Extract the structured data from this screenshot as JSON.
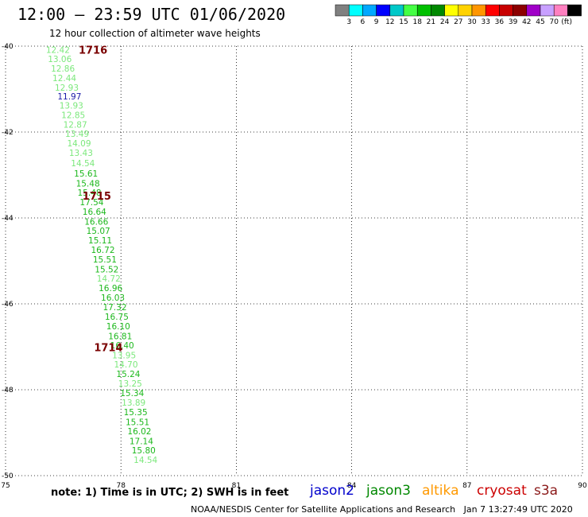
{
  "header": {
    "title": "12:00 – 23:59 UTC 01/06/2020",
    "subtitle": "12 hour collection of altimeter wave heights"
  },
  "colorbar": {
    "units": "(ft)",
    "swatches": [
      {
        "color": "#808080",
        "label": ""
      },
      {
        "color": "#00ffff",
        "label": "3"
      },
      {
        "color": "#00a8ff",
        "label": "6"
      },
      {
        "color": "#0000ff",
        "label": "9"
      },
      {
        "color": "#00c8c8",
        "label": "12"
      },
      {
        "color": "#44ff44",
        "label": "15"
      },
      {
        "color": "#00c000",
        "label": "18"
      },
      {
        "color": "#008800",
        "label": "21"
      },
      {
        "color": "#ffff00",
        "label": "24"
      },
      {
        "color": "#ffd200",
        "label": "27"
      },
      {
        "color": "#ff9600",
        "label": "30"
      },
      {
        "color": "#ff0000",
        "label": "33"
      },
      {
        "color": "#c80000",
        "label": "36"
      },
      {
        "color": "#8c0000",
        "label": "39"
      },
      {
        "color": "#a000c8",
        "label": "42"
      },
      {
        "color": "#c8a0ff",
        "label": "45"
      },
      {
        "color": "#ff80c0",
        "label": "70"
      },
      {
        "color": "#000000",
        "label": ""
      }
    ]
  },
  "map": {
    "lon_range": [
      75,
      90
    ],
    "lat_range": [
      -40,
      -50
    ],
    "lon_ticks": [
      "75",
      "78",
      "81",
      "84",
      "87",
      "90"
    ],
    "lat_ticks": [
      "-40",
      "-42",
      "-44",
      "-46",
      "-48",
      "-50"
    ],
    "pass_labels": [
      {
        "text": "1716",
        "lon": 76.9,
        "lat": -40.08
      },
      {
        "text": "1715",
        "lon": 77.0,
        "lat": -43.48
      },
      {
        "text": "1714",
        "lon": 77.3,
        "lat": -47.01
      }
    ],
    "observations": [
      {
        "v": "12.42",
        "color": "#7ce87c",
        "lon": 76.05,
        "lat": -40.08
      },
      {
        "v": "13.06",
        "color": "#7ce87c",
        "lon": 76.1,
        "lat": -40.3
      },
      {
        "v": "12.86",
        "color": "#7ce87c",
        "lon": 76.18,
        "lat": -40.52
      },
      {
        "v": "12.44",
        "color": "#7ce87c",
        "lon": 76.22,
        "lat": -40.74
      },
      {
        "v": "12.93",
        "color": "#7ce87c",
        "lon": 76.28,
        "lat": -40.96
      },
      {
        "v": "11.97",
        "color": "#1a1aa8",
        "lon": 76.35,
        "lat": -41.17
      },
      {
        "v": "13.93",
        "color": "#7ce87c",
        "lon": 76.4,
        "lat": -41.38
      },
      {
        "v": "12.85",
        "color": "#7ce87c",
        "lon": 76.45,
        "lat": -41.6
      },
      {
        "v": "12.87",
        "color": "#7ce87c",
        "lon": 76.5,
        "lat": -41.82
      },
      {
        "v": "13.49",
        "color": "#7ce87c",
        "lon": 76.55,
        "lat": -42.04
      },
      {
        "v": "14.09",
        "color": "#7ce87c",
        "lon": 76.6,
        "lat": -42.26
      },
      {
        "v": "13.43",
        "color": "#7ce87c",
        "lon": 76.65,
        "lat": -42.48
      },
      {
        "v": "14.54",
        "color": "#7ce87c",
        "lon": 76.7,
        "lat": -42.72
      },
      {
        "v": "15.61",
        "color": "#1db81d",
        "lon": 76.78,
        "lat": -42.96
      },
      {
        "v": "15.48",
        "color": "#1db81d",
        "lon": 76.83,
        "lat": -43.19
      },
      {
        "v": "15.48",
        "color": "#1db81d",
        "lon": 76.87,
        "lat": -43.41
      },
      {
        "v": "17.54",
        "color": "#1db81d",
        "lon": 76.93,
        "lat": -43.63
      },
      {
        "v": "16.64",
        "color": "#1db81d",
        "lon": 77.0,
        "lat": -43.85
      },
      {
        "v": "16.66",
        "color": "#1db81d",
        "lon": 77.05,
        "lat": -44.08
      },
      {
        "v": "15.07",
        "color": "#1db81d",
        "lon": 77.1,
        "lat": -44.3
      },
      {
        "v": "15.11",
        "color": "#1db81d",
        "lon": 77.15,
        "lat": -44.52
      },
      {
        "v": "16.72",
        "color": "#1db81d",
        "lon": 77.22,
        "lat": -44.74
      },
      {
        "v": "15.51",
        "color": "#1db81d",
        "lon": 77.27,
        "lat": -44.96
      },
      {
        "v": "15.52",
        "color": "#1db81d",
        "lon": 77.32,
        "lat": -45.19
      },
      {
        "v": "14.72",
        "color": "#7ce87c",
        "lon": 77.37,
        "lat": -45.41
      },
      {
        "v": "16.96",
        "color": "#1db81d",
        "lon": 77.42,
        "lat": -45.63
      },
      {
        "v": "16.03",
        "color": "#1db81d",
        "lon": 77.48,
        "lat": -45.85
      },
      {
        "v": "17.32",
        "color": "#1db81d",
        "lon": 77.53,
        "lat": -46.07
      },
      {
        "v": "16.75",
        "color": "#1db81d",
        "lon": 77.58,
        "lat": -46.3
      },
      {
        "v": "16.10",
        "color": "#1db81d",
        "lon": 77.62,
        "lat": -46.52
      },
      {
        "v": "16.81",
        "color": "#1db81d",
        "lon": 77.67,
        "lat": -46.75
      },
      {
        "v": "16.40",
        "color": "#1db81d",
        "lon": 77.72,
        "lat": -46.96
      },
      {
        "v": "13.95",
        "color": "#7ce87c",
        "lon": 77.77,
        "lat": -47.19
      },
      {
        "v": "14.70",
        "color": "#7ce87c",
        "lon": 77.82,
        "lat": -47.41
      },
      {
        "v": "15.24",
        "color": "#1db81d",
        "lon": 77.88,
        "lat": -47.63
      },
      {
        "v": "13.25",
        "color": "#7ce87c",
        "lon": 77.93,
        "lat": -47.85
      },
      {
        "v": "15.34",
        "color": "#1db81d",
        "lon": 77.98,
        "lat": -48.07
      },
      {
        "v": "13.89",
        "color": "#7ce87c",
        "lon": 78.02,
        "lat": -48.3
      },
      {
        "v": "15.35",
        "color": "#1db81d",
        "lon": 78.07,
        "lat": -48.52
      },
      {
        "v": "15.51",
        "color": "#1db81d",
        "lon": 78.12,
        "lat": -48.75
      },
      {
        "v": "16.02",
        "color": "#1db81d",
        "lon": 78.17,
        "lat": -48.96
      },
      {
        "v": "17.14",
        "color": "#1db81d",
        "lon": 78.22,
        "lat": -49.19
      },
      {
        "v": "15.80",
        "color": "#1db81d",
        "lon": 78.28,
        "lat": -49.41
      },
      {
        "v": "14.54",
        "color": "#7ce87c",
        "lon": 78.33,
        "lat": -49.63
      }
    ]
  },
  "note": "note: 1) Time is in UTC; 2) SWH is in feet",
  "satellites": [
    {
      "name": "jason2",
      "color": "#0000cc"
    },
    {
      "name": "jason3",
      "color": "#008800"
    },
    {
      "name": "altika",
      "color": "#ff9900"
    },
    {
      "name": "cryosat",
      "color": "#cc0000"
    },
    {
      "name": "s3a",
      "color": "#8b1a1a"
    }
  ],
  "footer": {
    "credit": "NOAA/NESDIS Center for Satellite Applications and Research",
    "timestamp": "Jan  7 13:27:49 UTC 2020"
  }
}
